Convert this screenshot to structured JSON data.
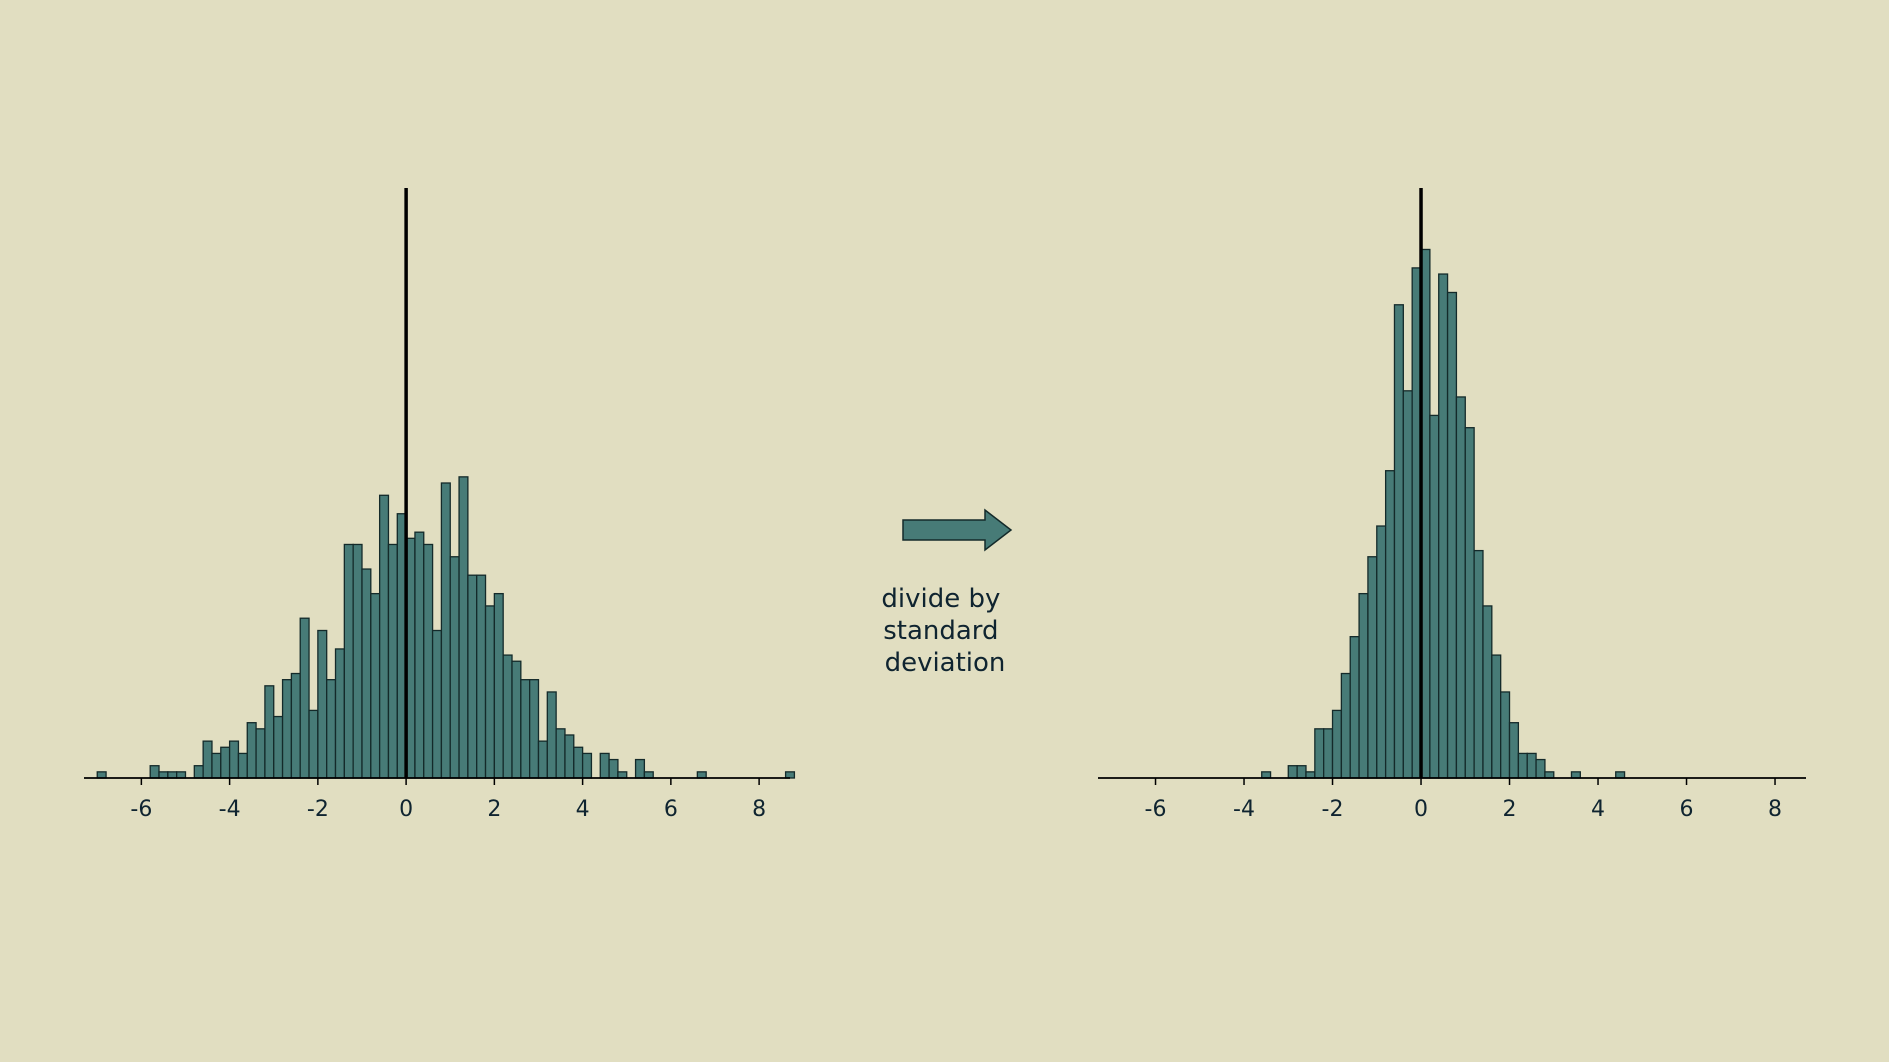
{
  "colors": {
    "background": "#e1dec1",
    "bar_fill": "#477b77",
    "bar_edge": "#142a2a",
    "zero_line": "#000000",
    "text": "#0f2430",
    "axis": "#000000"
  },
  "chart_data": [
    {
      "type": "bar",
      "title": "",
      "xlabel": "",
      "ylabel": "",
      "xlim": [
        -7.3,
        8.7
      ],
      "ylim": [
        0,
        48
      ],
      "xticks": [
        "-6",
        "-4",
        "-2",
        "0",
        "2",
        "4",
        "6",
        "8"
      ],
      "xtick_values": [
        -6,
        -4,
        -2,
        0,
        2,
        4,
        6,
        8
      ],
      "yaxis_visible": false,
      "reference_line_x": 0,
      "bin_width": 0.2,
      "bins": [
        {
          "x": -7.0,
          "count": 0.5
        },
        {
          "x": -5.8,
          "count": 1.0
        },
        {
          "x": -5.6,
          "count": 0.5
        },
        {
          "x": -5.4,
          "count": 0.5
        },
        {
          "x": -5.2,
          "count": 0.5
        },
        {
          "x": -4.8,
          "count": 1.0
        },
        {
          "x": -4.6,
          "count": 3.0
        },
        {
          "x": -4.4,
          "count": 2.0
        },
        {
          "x": -4.2,
          "count": 2.5
        },
        {
          "x": -4.0,
          "count": 3.0
        },
        {
          "x": -3.8,
          "count": 2.0
        },
        {
          "x": -3.6,
          "count": 4.5
        },
        {
          "x": -3.4,
          "count": 4.0
        },
        {
          "x": -3.2,
          "count": 7.5
        },
        {
          "x": -3.0,
          "count": 5.0
        },
        {
          "x": -2.8,
          "count": 8.0
        },
        {
          "x": -2.6,
          "count": 8.5
        },
        {
          "x": -2.4,
          "count": 13.0
        },
        {
          "x": -2.2,
          "count": 5.5
        },
        {
          "x": -2.0,
          "count": 12.0
        },
        {
          "x": -1.8,
          "count": 8.0
        },
        {
          "x": -1.6,
          "count": 10.5
        },
        {
          "x": -1.4,
          "count": 19.0
        },
        {
          "x": -1.2,
          "count": 19.0
        },
        {
          "x": -1.0,
          "count": 17.0
        },
        {
          "x": -0.8,
          "count": 15.0
        },
        {
          "x": -0.6,
          "count": 23.0
        },
        {
          "x": -0.4,
          "count": 19.0
        },
        {
          "x": -0.2,
          "count": 21.5
        },
        {
          "x": 0.0,
          "count": 19.5
        },
        {
          "x": 0.2,
          "count": 20.0
        },
        {
          "x": 0.4,
          "count": 19.0
        },
        {
          "x": 0.6,
          "count": 12.0
        },
        {
          "x": 0.8,
          "count": 24.0
        },
        {
          "x": 1.0,
          "count": 18.0
        },
        {
          "x": 1.2,
          "count": 24.5
        },
        {
          "x": 1.4,
          "count": 16.5
        },
        {
          "x": 1.6,
          "count": 16.5
        },
        {
          "x": 1.8,
          "count": 14.0
        },
        {
          "x": 2.0,
          "count": 15.0
        },
        {
          "x": 2.2,
          "count": 10.0
        },
        {
          "x": 2.4,
          "count": 9.5
        },
        {
          "x": 2.6,
          "count": 8.0
        },
        {
          "x": 2.8,
          "count": 8.0
        },
        {
          "x": 3.0,
          "count": 3.0
        },
        {
          "x": 3.2,
          "count": 7.0
        },
        {
          "x": 3.4,
          "count": 4.0
        },
        {
          "x": 3.6,
          "count": 3.5
        },
        {
          "x": 3.8,
          "count": 2.5
        },
        {
          "x": 4.0,
          "count": 2.0
        },
        {
          "x": 4.4,
          "count": 2.0
        },
        {
          "x": 4.6,
          "count": 1.5
        },
        {
          "x": 4.8,
          "count": 0.5
        },
        {
          "x": 5.2,
          "count": 1.5
        },
        {
          "x": 5.4,
          "count": 0.5
        },
        {
          "x": 6.6,
          "count": 0.5
        },
        {
          "x": 8.6,
          "count": 0.5
        }
      ]
    },
    {
      "type": "bar",
      "title": "",
      "xlabel": "",
      "ylabel": "",
      "xlim": [
        -7.3,
        8.7
      ],
      "ylim": [
        0,
        48
      ],
      "xticks": [
        "-6",
        "-4",
        "-2",
        "0",
        "2",
        "4",
        "6",
        "8"
      ],
      "xtick_values": [
        -6,
        -4,
        -2,
        0,
        2,
        4,
        6,
        8
      ],
      "yaxis_visible": false,
      "reference_line_x": 0,
      "bin_width": 0.2,
      "bins": [
        {
          "x": -3.6,
          "count": 0.5
        },
        {
          "x": -3.0,
          "count": 1.0
        },
        {
          "x": -2.8,
          "count": 1.0
        },
        {
          "x": -2.6,
          "count": 0.5
        },
        {
          "x": -2.4,
          "count": 4.0
        },
        {
          "x": -2.2,
          "count": 4.0
        },
        {
          "x": -2.0,
          "count": 5.5
        },
        {
          "x": -1.8,
          "count": 8.5
        },
        {
          "x": -1.6,
          "count": 11.5
        },
        {
          "x": -1.4,
          "count": 15.0
        },
        {
          "x": -1.2,
          "count": 18.0
        },
        {
          "x": -1.0,
          "count": 20.5
        },
        {
          "x": -0.8,
          "count": 25.0
        },
        {
          "x": -0.6,
          "count": 38.5
        },
        {
          "x": -0.4,
          "count": 31.5
        },
        {
          "x": -0.2,
          "count": 41.5
        },
        {
          "x": 0.0,
          "count": 43.0
        },
        {
          "x": 0.2,
          "count": 29.5
        },
        {
          "x": 0.4,
          "count": 41.0
        },
        {
          "x": 0.6,
          "count": 39.5
        },
        {
          "x": 0.8,
          "count": 31.0
        },
        {
          "x": 1.0,
          "count": 28.5
        },
        {
          "x": 1.2,
          "count": 18.5
        },
        {
          "x": 1.4,
          "count": 14.0
        },
        {
          "x": 1.6,
          "count": 10.0
        },
        {
          "x": 1.8,
          "count": 7.0
        },
        {
          "x": 2.0,
          "count": 4.5
        },
        {
          "x": 2.2,
          "count": 2.0
        },
        {
          "x": 2.4,
          "count": 2.0
        },
        {
          "x": 2.6,
          "count": 1.5
        },
        {
          "x": 2.8,
          "count": 0.5
        },
        {
          "x": 3.4,
          "count": 0.5
        },
        {
          "x": 4.4,
          "count": 0.5
        }
      ]
    }
  ],
  "annotation": {
    "lines": [
      "divide by",
      "standard",
      "deviation"
    ],
    "arrow_direction": "right"
  }
}
